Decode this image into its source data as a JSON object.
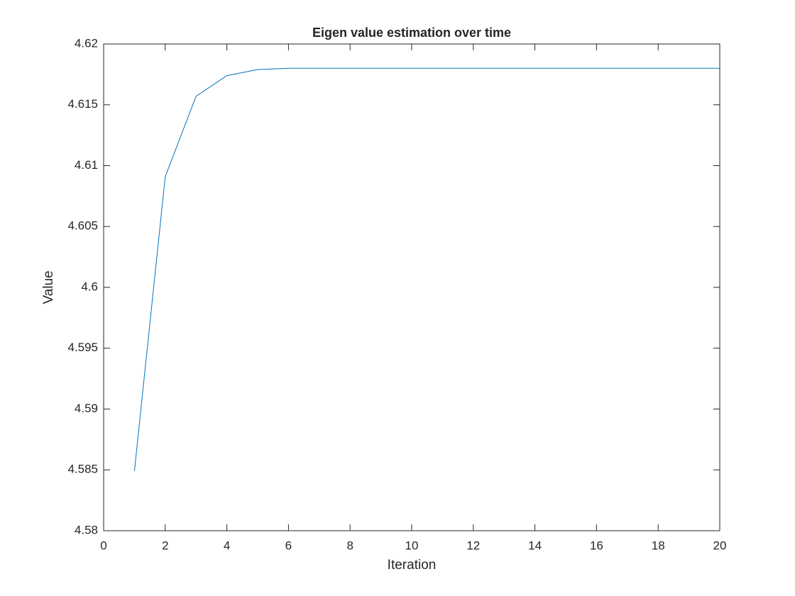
{
  "chart_data": {
    "type": "line",
    "title": "Eigen value estimation over time",
    "x_label": "Iteration",
    "y_label": "Value",
    "x": [
      1,
      2,
      3,
      4,
      5,
      6,
      7,
      8,
      9,
      10,
      11,
      12,
      13,
      14,
      15,
      16,
      17,
      18,
      19,
      20
    ],
    "series": [
      {
        "name": "Eigen value",
        "color": "#0072bd",
        "values": [
          4.5849,
          4.6091,
          4.6157,
          4.6174,
          4.6179,
          4.618,
          4.618,
          4.618,
          4.618,
          4.618,
          4.618,
          4.618,
          4.618,
          4.618,
          4.618,
          4.618,
          4.618,
          4.618,
          4.618,
          4.618
        ]
      }
    ],
    "xlim": [
      0,
      20
    ],
    "xticks": [
      0,
      2,
      4,
      6,
      8,
      10,
      12,
      14,
      16,
      18,
      20
    ],
    "ylim": [
      4.58,
      4.62
    ],
    "yticks": [
      4.58,
      4.585,
      4.59,
      4.595,
      4.6,
      4.605,
      4.61,
      4.615,
      4.62
    ],
    "grid": false
  }
}
